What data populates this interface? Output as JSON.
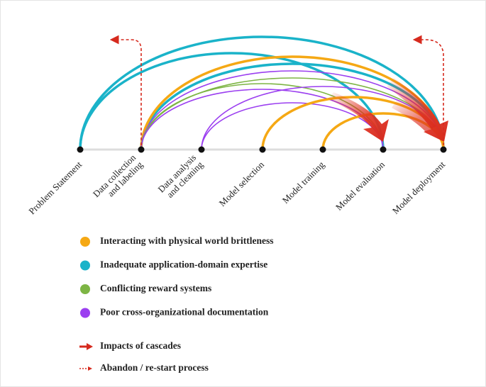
{
  "stages": [
    {
      "lines": [
        "Problem Statement"
      ]
    },
    {
      "lines": [
        "Data collection",
        "and labeling"
      ]
    },
    {
      "lines": [
        "Data analysis",
        "and cleaning"
      ]
    },
    {
      "lines": [
        "Model selection"
      ]
    },
    {
      "lines": [
        "Model training"
      ]
    },
    {
      "lines": [
        "Model evaluation"
      ]
    },
    {
      "lines": [
        "Model deployment"
      ]
    }
  ],
  "legend": {
    "categories": [
      {
        "label": "Interacting with physical world brittleness",
        "color": "#f5a814"
      },
      {
        "label": "Inadequate application-domain expertise",
        "color": "#1ab3c9"
      },
      {
        "label": "Conflicting reward systems",
        "color": "#7db544"
      },
      {
        "label": "Poor cross-organizational documentation",
        "color": "#9b3ff0"
      }
    ],
    "markers": [
      {
        "label": "Impacts of cascades"
      },
      {
        "label": "Abandon / re-start process"
      }
    ]
  }
}
